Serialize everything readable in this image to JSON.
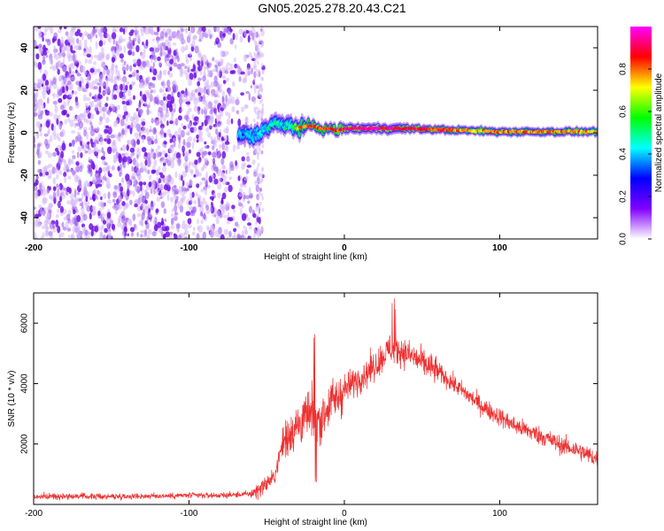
{
  "title": "GN05.2025.278.20.43.C21",
  "chart_data": [
    {
      "type": "heatmap",
      "xlabel": "Height of straight line (km)",
      "ylabel": "Frequency (Hz)",
      "xlim": [
        -200,
        163
      ],
      "ylim": [
        -50,
        50
      ],
      "xticks": [
        -200,
        -100,
        0,
        100
      ],
      "yticks": [
        -40,
        -20,
        0,
        20,
        40
      ],
      "colorbar": {
        "label": "Normalized spectral amplitude",
        "range": [
          0,
          1
        ],
        "ticks": [
          "0.0",
          "0.2",
          "0.4",
          "0.6",
          "0.8"
        ],
        "colors": [
          "#ffffff",
          "#8000ff",
          "#0000ff",
          "#00ffff",
          "#00ff00",
          "#ffff00",
          "#ff0000",
          "#ff00ff"
        ]
      },
      "noise_region": {
        "x_from": -200,
        "x_to": -52,
        "typical_amplitude": 0.1
      },
      "signal_track": {
        "x": [
          -70,
          -64,
          -60,
          -55,
          -50,
          -45,
          -40,
          -35,
          -30,
          -25,
          -20,
          -15,
          -10,
          -5,
          0,
          10,
          20,
          40,
          60,
          80,
          100,
          120,
          140,
          163
        ],
        "freq": [
          -3,
          0,
          -2,
          0,
          2,
          5,
          3,
          4,
          2,
          3,
          3,
          2,
          2,
          1,
          2,
          2,
          2,
          2,
          1.5,
          1,
          0.5,
          0.5,
          0.5,
          0.5
        ],
        "amplitude": [
          0.3,
          0.35,
          0.35,
          0.4,
          0.45,
          0.5,
          0.45,
          0.5,
          0.75,
          0.8,
          0.85,
          0.8,
          0.85,
          0.85,
          0.9,
          0.95,
          0.95,
          0.9,
          0.85,
          0.75,
          0.8,
          0.8,
          0.8,
          0.75
        ]
      }
    },
    {
      "type": "line",
      "xlabel": "Height of straight line (km)",
      "ylabel": "SNR (10 * v/v)",
      "xlim": [
        -200,
        163
      ],
      "ylim": [
        0,
        7000
      ],
      "xticks": [
        -200,
        -100,
        0,
        100
      ],
      "yticks": [
        2000,
        4000,
        6000
      ],
      "color": "#ee3030",
      "series": [
        {
          "x": [
            -200,
            -180,
            -160,
            -140,
            -120,
            -100,
            -80,
            -70,
            -60,
            -55,
            -50,
            -45,
            -40,
            -35,
            -30,
            -25,
            -20,
            -15,
            -10,
            -5,
            0,
            10,
            20,
            30,
            40,
            50,
            60,
            70,
            80,
            90,
            100,
            110,
            120,
            130,
            140,
            150,
            163
          ],
          "y": [
            250,
            280,
            260,
            270,
            280,
            300,
            300,
            320,
            350,
            500,
            700,
            900,
            2000,
            2400,
            2600,
            2900,
            3000,
            2800,
            3300,
            3500,
            3800,
            4200,
            4600,
            5200,
            5000,
            4700,
            4400,
            4000,
            3600,
            3200,
            2900,
            2600,
            2400,
            2200,
            1950,
            1800,
            1500
          ]
        }
      ]
    }
  ]
}
